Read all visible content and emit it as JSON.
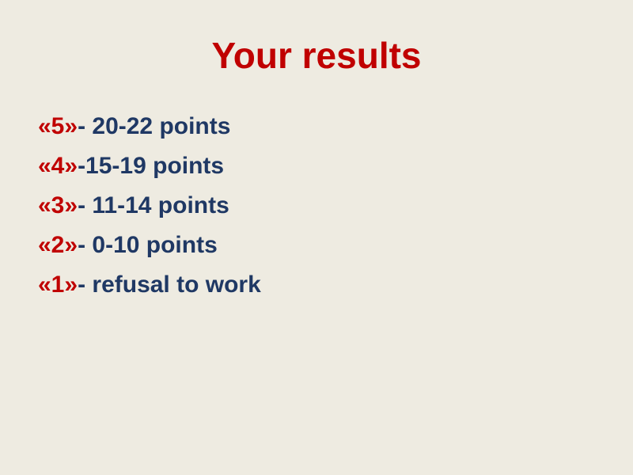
{
  "slide": {
    "title": "Your results",
    "results": [
      {
        "grade": "«5»",
        "description": "- 20-22 points"
      },
      {
        "grade": "«4»",
        "description": "-15-19 points"
      },
      {
        "grade": "«3»",
        "description": "- 11-14 points"
      },
      {
        "grade": "«2»",
        "description": "- 0-10 points"
      },
      {
        "grade": "«1»",
        "description": "- refusal to work"
      }
    ],
    "colors": {
      "background": "#EEEBE1",
      "title_red": "#C00000",
      "grade_red": "#C00000",
      "text_navy": "#1F3864"
    }
  }
}
